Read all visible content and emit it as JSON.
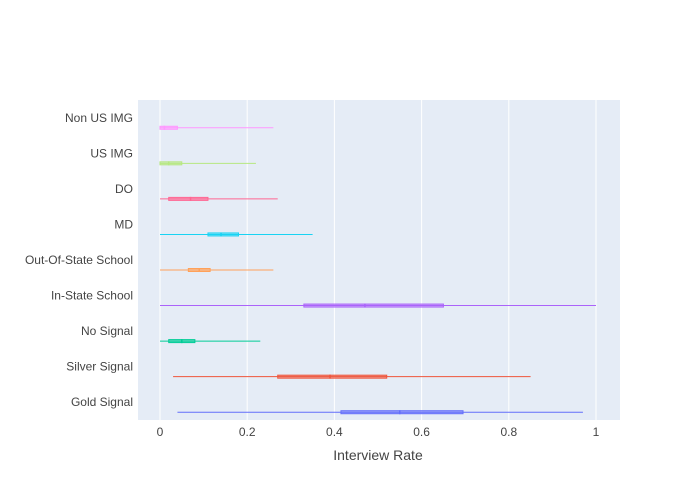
{
  "chart_data": {
    "type": "box",
    "orientation": "horizontal",
    "xlabel": "Interview Rate",
    "xlim": [
      -0.05,
      1.05
    ],
    "xticks": [
      0,
      0.2,
      0.4,
      0.6,
      0.8,
      1
    ],
    "xtick_labels": [
      "0",
      "0.2",
      "0.4",
      "0.6",
      "0.8",
      "1"
    ],
    "grid": true,
    "legend": "none",
    "categories": [
      "Gold Signal",
      "Silver Signal",
      "No Signal",
      "In-State School",
      "Out-Of-State School",
      "MD",
      "DO",
      "US IMG",
      "Non US IMG"
    ],
    "series": [
      {
        "category": "Gold Signal",
        "min": 0.04,
        "q1": 0.415,
        "median": 0.55,
        "q3": 0.695,
        "max": 0.97,
        "color": "#636efa"
      },
      {
        "category": "Silver Signal",
        "min": 0.03,
        "q1": 0.27,
        "median": 0.39,
        "q3": 0.52,
        "max": 0.85,
        "color": "#ef553b"
      },
      {
        "category": "No Signal",
        "min": 0.0,
        "q1": 0.02,
        "median": 0.05,
        "q3": 0.08,
        "max": 0.23,
        "color": "#00cc96"
      },
      {
        "category": "In-State School",
        "min": 0.0,
        "q1": 0.33,
        "median": 0.47,
        "q3": 0.65,
        "max": 1.0,
        "color": "#ab63fa"
      },
      {
        "category": "Out-Of-State School",
        "min": 0.0,
        "q1": 0.065,
        "median": 0.09,
        "q3": 0.115,
        "max": 0.26,
        "color": "#ffa15a"
      },
      {
        "category": "MD",
        "min": 0.0,
        "q1": 0.11,
        "median": 0.14,
        "q3": 0.18,
        "max": 0.35,
        "color": "#19d3f3"
      },
      {
        "category": "DO",
        "min": 0.0,
        "q1": 0.02,
        "median": 0.07,
        "q3": 0.11,
        "max": 0.27,
        "color": "#ff6692"
      },
      {
        "category": "US IMG",
        "min": 0.0,
        "q1": 0.0,
        "median": 0.02,
        "q3": 0.05,
        "max": 0.22,
        "color": "#b6e880"
      },
      {
        "category": "Non US IMG",
        "min": 0.0,
        "q1": 0.0,
        "median": 0.01,
        "q3": 0.04,
        "max": 0.26,
        "color": "#ff97ff"
      }
    ]
  }
}
